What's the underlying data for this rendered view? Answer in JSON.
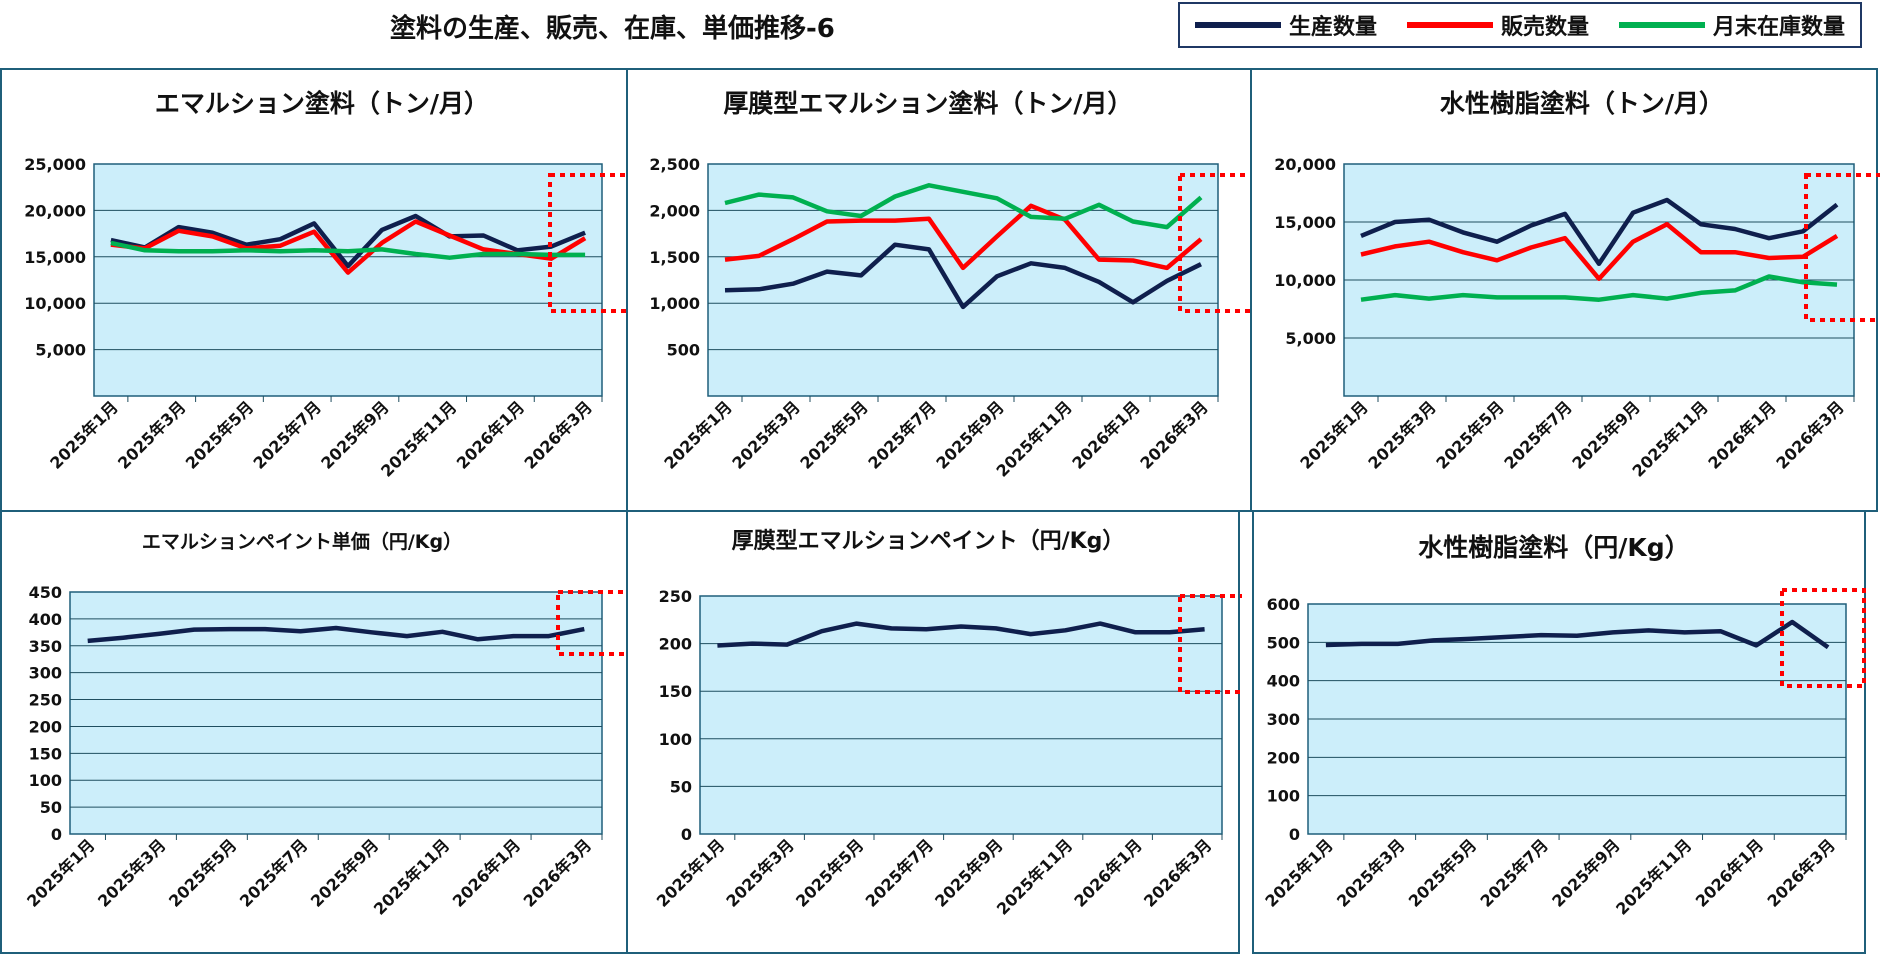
{
  "page": {
    "title": "塗料の生産、販売、在庫、単価推移-6"
  },
  "legend": {
    "items": [
      {
        "label": "生産数量",
        "color": "#0f1f4d"
      },
      {
        "label": "販売数量",
        "color": "#ff0000"
      },
      {
        "label": "月末在庫数量",
        "color": "#00b050"
      }
    ]
  },
  "chart_data": [
    {
      "type": "line",
      "title": "エマルション塗料（トン/月）",
      "x": [
        "2025年1月",
        "2025年2月",
        "2025年3月",
        "2025年4月",
        "2025年5月",
        "2025年6月",
        "2025年7月",
        "2025年8月",
        "2025年9月",
        "2025年10月",
        "2025年11月",
        "2025年12月",
        "2026年1月",
        "2026年2月",
        "2026年3月"
      ],
      "xtick_labels": [
        "2025年1月",
        "2025年3月",
        "2025年5月",
        "2025年7月",
        "2025年9月",
        "2025年11月",
        "2026年1月",
        "2026年3月"
      ],
      "ylim": [
        0,
        25000
      ],
      "yticks": [
        "",
        "5,000",
        "10,000",
        "15,000",
        "20,000",
        "25,000"
      ],
      "series": [
        {
          "name": "生産数量",
          "color": "#0f1f4d",
          "values": [
            16800,
            16000,
            18200,
            17600,
            16300,
            16900,
            18600,
            14000,
            17900,
            19400,
            17200,
            17300,
            15700,
            16100,
            17600
          ]
        },
        {
          "name": "販売数量",
          "color": "#ff0000",
          "values": [
            16300,
            15900,
            17800,
            17200,
            15900,
            16200,
            17700,
            13300,
            16500,
            18800,
            17300,
            15800,
            15300,
            14800,
            17000
          ]
        },
        {
          "name": "月末在庫数量",
          "color": "#00b050",
          "values": [
            16500,
            15700,
            15600,
            15600,
            15700,
            15600,
            15700,
            15600,
            15800,
            15300,
            14900,
            15300,
            15300,
            15200,
            15200
          ]
        }
      ]
    },
    {
      "type": "line",
      "title": "厚膜型エマルション塗料（トン/月）",
      "x": [
        "2025年1月",
        "2025年2月",
        "2025年3月",
        "2025年4月",
        "2025年5月",
        "2025年6月",
        "2025年7月",
        "2025年8月",
        "2025年9月",
        "2025年10月",
        "2025年11月",
        "2025年12月",
        "2026年1月",
        "2026年2月",
        "2026年3月"
      ],
      "xtick_labels": [
        "2025年1月",
        "2025年3月",
        "2025年5月",
        "2025年7月",
        "2025年9月",
        "2025年11月",
        "2026年1月",
        "2026年3月"
      ],
      "ylim": [
        0,
        2500
      ],
      "yticks": [
        "",
        "500",
        "1,000",
        "1,500",
        "2,000",
        "2,500"
      ],
      "series": [
        {
          "name": "生産数量",
          "color": "#0f1f4d",
          "values": [
            1140,
            1150,
            1210,
            1340,
            1300,
            1630,
            1580,
            960,
            1290,
            1430,
            1380,
            1230,
            1010,
            1240,
            1420
          ]
        },
        {
          "name": "販売数量",
          "color": "#ff0000",
          "values": [
            1470,
            1510,
            1690,
            1880,
            1890,
            1890,
            1910,
            1380,
            1720,
            2050,
            1900,
            1470,
            1460,
            1380,
            1690
          ]
        },
        {
          "name": "月末在庫数量",
          "color": "#00b050",
          "values": [
            2080,
            2170,
            2140,
            1990,
            1940,
            2150,
            2270,
            2200,
            2130,
            1930,
            1910,
            2060,
            1880,
            1820,
            2140
          ]
        }
      ]
    },
    {
      "type": "line",
      "title": "水性樹脂塗料（トン/月）",
      "x": [
        "2025年1月",
        "2025年2月",
        "2025年3月",
        "2025年4月",
        "2025年5月",
        "2025年6月",
        "2025年7月",
        "2025年8月",
        "2025年9月",
        "2025年10月",
        "2025年11月",
        "2025年12月",
        "2026年1月",
        "2026年2月",
        "2026年3月"
      ],
      "xtick_labels": [
        "2025年1月",
        "2025年3月",
        "2025年5月",
        "2025年7月",
        "2025年9月",
        "2025年11月",
        "2026年1月",
        "2026年3月"
      ],
      "ylim": [
        0,
        20000
      ],
      "yticks": [
        "",
        "5,000",
        "10,000",
        "15,000",
        "20,000"
      ],
      "series": [
        {
          "name": "生産数量",
          "color": "#0f1f4d",
          "values": [
            13800,
            15000,
            15200,
            14100,
            13300,
            14700,
            15700,
            11400,
            15800,
            16900,
            14800,
            14400,
            13600,
            14200,
            16500
          ]
        },
        {
          "name": "販売数量",
          "color": "#ff0000",
          "values": [
            12200,
            12900,
            13300,
            12400,
            11700,
            12800,
            13600,
            10100,
            13300,
            14800,
            12400,
            12400,
            11900,
            12000,
            13800
          ]
        },
        {
          "name": "月末在庫数量",
          "color": "#00b050",
          "values": [
            8300,
            8700,
            8400,
            8700,
            8500,
            8500,
            8500,
            8300,
            8700,
            8400,
            8900,
            9100,
            10300,
            9800,
            9600
          ]
        }
      ]
    },
    {
      "type": "line",
      "title": "エマルションペイント単価（円/Kg）",
      "x": [
        "2025年1月",
        "2025年2月",
        "2025年3月",
        "2025年4月",
        "2025年5月",
        "2025年6月",
        "2025年7月",
        "2025年8月",
        "2025年9月",
        "2025年10月",
        "2025年11月",
        "2025年12月",
        "2026年1月",
        "2026年2月",
        "2026年3月"
      ],
      "xtick_labels": [
        "2025年1月",
        "2025年3月",
        "2025年5月",
        "2025年7月",
        "2025年9月",
        "2025年11月",
        "2026年1月",
        "2026年3月"
      ],
      "ylim": [
        0,
        450
      ],
      "yticks": [
        "0",
        "50",
        "100",
        "150",
        "200",
        "250",
        "300",
        "350",
        "400",
        "450"
      ],
      "series": [
        {
          "name": "生産数量",
          "color": "#0f1f4d",
          "values": [
            359,
            365,
            372,
            380,
            381,
            381,
            377,
            383,
            375,
            368,
            376,
            362,
            368,
            368,
            381
          ]
        }
      ]
    },
    {
      "type": "line",
      "title": "厚膜型エマルションペイント（円/Kg）",
      "x": [
        "2025年1月",
        "2025年2月",
        "2025年3月",
        "2025年4月",
        "2025年5月",
        "2025年6月",
        "2025年7月",
        "2025年8月",
        "2025年9月",
        "2025年10月",
        "2025年11月",
        "2025年12月",
        "2026年1月",
        "2026年2月",
        "2026年3月"
      ],
      "xtick_labels": [
        "2025年1月",
        "2025年3月",
        "2025年5月",
        "2025年7月",
        "2025年9月",
        "2025年11月",
        "2026年1月",
        "2026年3月"
      ],
      "ylim": [
        0,
        250
      ],
      "yticks": [
        "0",
        "50",
        "100",
        "150",
        "200",
        "250"
      ],
      "series": [
        {
          "name": "生産数量",
          "color": "#0f1f4d",
          "values": [
            198,
            200,
            199,
            213,
            221,
            216,
            215,
            218,
            216,
            210,
            214,
            221,
            212,
            212,
            215
          ]
        }
      ]
    },
    {
      "type": "line",
      "title": "水性樹脂塗料（円/Kg）",
      "x": [
        "2025年1月",
        "2025年2月",
        "2025年3月",
        "2025年4月",
        "2025年5月",
        "2025年6月",
        "2025年7月",
        "2025年8月",
        "2025年9月",
        "2025年10月",
        "2025年11月",
        "2025年12月",
        "2026年1月",
        "2026年2月",
        "2026年3月"
      ],
      "xtick_labels": [
        "2025年1月",
        "2025年3月",
        "2025年5月",
        "2025年7月",
        "2025年9月",
        "2025年11月",
        "2026年1月",
        "2026年3月"
      ],
      "ylim": [
        0,
        600
      ],
      "yticks": [
        "0",
        "100",
        "200",
        "300",
        "400",
        "500",
        "600"
      ],
      "series": [
        {
          "name": "生産数量",
          "color": "#0f1f4d",
          "values": [
            493,
            496,
            496,
            505,
            509,
            514,
            519,
            517,
            526,
            531,
            526,
            529,
            492,
            553,
            487
          ]
        }
      ]
    }
  ]
}
